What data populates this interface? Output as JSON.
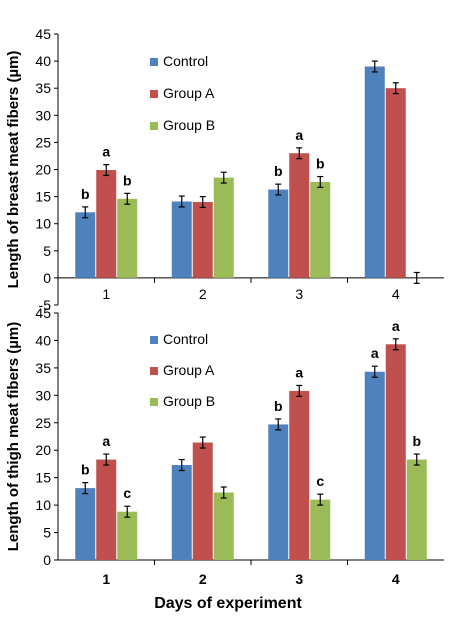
{
  "colors": {
    "control": "#4F81BD",
    "group_a": "#C0504D",
    "group_b": "#9BBB59"
  },
  "xlabel": "Days of experiment",
  "chart_data": [
    {
      "type": "bar",
      "ylabel": "Length of  breast meat  fibers (µm)",
      "ylim": [
        -5,
        45
      ],
      "yticks": [
        -5,
        0,
        5,
        10,
        15,
        20,
        25,
        30,
        35,
        40,
        45
      ],
      "ytick_labels": [
        "-5",
        "0",
        "5",
        "10",
        "15",
        "20",
        "25",
        "30",
        "35",
        "40",
        "45"
      ],
      "categories": [
        "1",
        "2",
        "3",
        "4"
      ],
      "xtick_bold": false,
      "legend_placement": "upper-left",
      "grid": false,
      "series": [
        {
          "name": "Control",
          "color": "control",
          "values": [
            12.1,
            14.1,
            16.3,
            39.0
          ],
          "errors": [
            1.0,
            1.0,
            1.0,
            1.0
          ],
          "labels": [
            "b",
            "",
            "b",
            ""
          ]
        },
        {
          "name": "Group A",
          "color": "group_a",
          "values": [
            19.9,
            14.0,
            23.0,
            35.0
          ],
          "errors": [
            1.0,
            1.0,
            1.0,
            1.0
          ],
          "labels": [
            "a",
            "",
            "a",
            ""
          ]
        },
        {
          "name": "Group B",
          "color": "group_b",
          "values": [
            14.6,
            18.5,
            17.7,
            0.0
          ],
          "errors": [
            1.0,
            1.0,
            1.0,
            1.0
          ],
          "labels": [
            "b",
            "",
            "b",
            ""
          ]
        }
      ]
    },
    {
      "type": "bar",
      "ylabel": "Length of  thigh  meat  fibers (µm)",
      "ylim": [
        0,
        45
      ],
      "yticks": [
        0,
        5,
        10,
        15,
        20,
        25,
        30,
        35,
        40,
        45
      ],
      "ytick_labels": [
        "0",
        "5",
        "10",
        "15",
        "20",
        "25",
        "30",
        "35",
        "40",
        "45"
      ],
      "categories": [
        "1",
        "2",
        "3",
        "4"
      ],
      "xtick_bold": true,
      "legend_placement": "upper-left",
      "grid": false,
      "series": [
        {
          "name": "Control",
          "color": "control",
          "values": [
            13.1,
            17.3,
            24.7,
            34.3
          ],
          "errors": [
            1.0,
            1.0,
            1.0,
            1.0
          ],
          "labels": [
            "b",
            "",
            "b",
            "a"
          ]
        },
        {
          "name": "Group A",
          "color": "group_a",
          "values": [
            18.3,
            21.4,
            30.8,
            39.3
          ],
          "errors": [
            1.0,
            1.0,
            1.0,
            1.0
          ],
          "labels": [
            "a",
            "",
            "a",
            "a"
          ]
        },
        {
          "name": "Group B",
          "color": "group_b",
          "values": [
            8.8,
            12.3,
            11.0,
            18.3
          ],
          "errors": [
            1.0,
            1.0,
            1.0,
            1.0
          ],
          "labels": [
            "c",
            "",
            "c",
            "b"
          ]
        }
      ]
    }
  ]
}
